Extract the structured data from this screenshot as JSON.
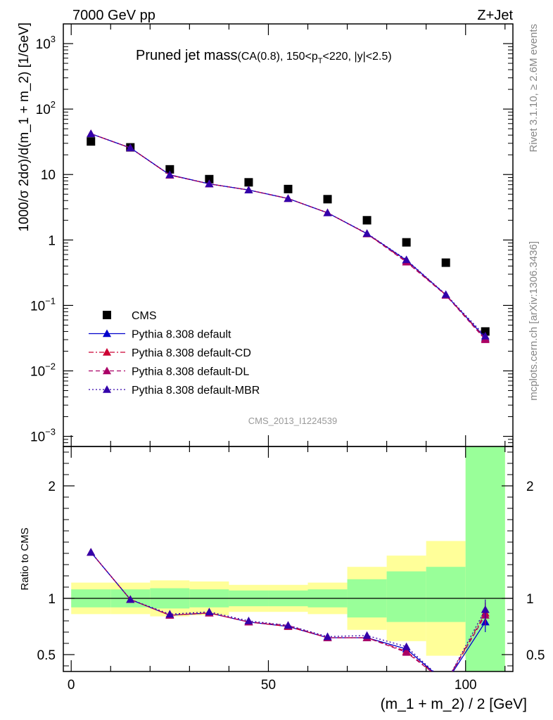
{
  "header": {
    "left": "7000 GeV pp",
    "right": "Z+Jet"
  },
  "side_labels": {
    "rivet": "Rivet 3.1.10, ≥ 2.6M events",
    "mcplots": "mcplots.cern.ch [arXiv:1306.3436]"
  },
  "analysis_id": "CMS_2013_I1224539",
  "colors": {
    "data": "#000000",
    "default": "#0000cc",
    "cd": "#cc0033",
    "dl": "#aa0066",
    "mbr": "#3300aa",
    "band_inner": "#99ff99",
    "band_outer": "#ffff99"
  },
  "chart_data": [
    {
      "type": "scatter",
      "panel": "main",
      "title": "Pruned jet mass",
      "title_suffix_pre": "(CA(0.8), 150<p",
      "title_suffix_sub": "T",
      "title_suffix_post": "<220, |y|<2.5)",
      "ylabel": "1000/σ 2dσ)/d(m_1 + m_2) [1/GeV]",
      "y_scale": "log",
      "ylim": [
        0.0007,
        2000
      ],
      "xlim": [
        -2,
        112
      ],
      "y_ticks": [
        {
          "v": 0.001,
          "base": "10",
          "exp": "−3"
        },
        {
          "v": 0.01,
          "base": "10",
          "exp": "−2"
        },
        {
          "v": 0.1,
          "base": "10",
          "exp": "−1"
        },
        {
          "v": 1,
          "base": "1",
          "exp": ""
        },
        {
          "v": 10,
          "base": "10",
          "exp": ""
        },
        {
          "v": 100,
          "base": "10",
          "exp": "2"
        },
        {
          "v": 1000,
          "base": "10",
          "exp": "3"
        }
      ],
      "x": [
        5,
        15,
        25,
        35,
        45,
        55,
        65,
        75,
        85,
        95,
        105
      ],
      "series": [
        {
          "name": "CMS",
          "key": "data",
          "style": "marker",
          "values": [
            32,
            26,
            12,
            8.5,
            7.6,
            6.0,
            4.2,
            2.0,
            0.92,
            0.45,
            0.04
          ]
        },
        {
          "name": "Pythia 8.308 default",
          "key": "default",
          "style": "solid",
          "values": [
            42,
            25.5,
            9.9,
            7.2,
            5.8,
            4.3,
            2.6,
            1.25,
            0.49,
            0.145,
            0.032
          ]
        },
        {
          "name": "Pythia 8.308 default-CD",
          "key": "cd",
          "style": "dashdot",
          "values": [
            42,
            25.5,
            9.8,
            7.2,
            5.8,
            4.3,
            2.6,
            1.25,
            0.47,
            0.145,
            0.031
          ]
        },
        {
          "name": "Pythia 8.308 default-DL",
          "key": "dl",
          "style": "dash",
          "values": [
            42,
            25.5,
            9.8,
            7.2,
            5.8,
            4.3,
            2.6,
            1.24,
            0.46,
            0.143,
            0.03
          ]
        },
        {
          "name": "Pythia 8.308 default-MBR",
          "key": "mbr",
          "style": "dot",
          "values": [
            42,
            25.5,
            9.9,
            7.2,
            5.8,
            4.3,
            2.6,
            1.26,
            0.5,
            0.147,
            0.034
          ]
        }
      ],
      "legend_placement": "bottom-left"
    },
    {
      "type": "line",
      "panel": "ratio",
      "ylabel": "Ratio to CMS",
      "xlabel": "(m_1 + m_2) / 2 [GeV]",
      "ylim": [
        0.35,
        2.35
      ],
      "xlim": [
        -2,
        112
      ],
      "x_ticks": [
        0,
        50,
        100
      ],
      "y_ticks": [
        0.5,
        1,
        2
      ],
      "reference_line": 1,
      "bins": [
        [
          0,
          10
        ],
        [
          10,
          20
        ],
        [
          20,
          30
        ],
        [
          30,
          40
        ],
        [
          40,
          50
        ],
        [
          50,
          60
        ],
        [
          60,
          70
        ],
        [
          70,
          80
        ],
        [
          80,
          90
        ],
        [
          90,
          100
        ],
        [
          100,
          110
        ]
      ],
      "band_inner": [
        [
          0.92,
          1.08
        ],
        [
          0.92,
          1.08
        ],
        [
          0.91,
          1.09
        ],
        [
          0.92,
          1.08
        ],
        [
          0.93,
          1.07
        ],
        [
          0.93,
          1.07
        ],
        [
          0.92,
          1.08
        ],
        [
          0.83,
          1.17
        ],
        [
          0.79,
          1.24
        ],
        [
          0.79,
          1.28
        ],
        [
          0.35,
          2.35
        ]
      ],
      "band_outer": [
        [
          0.86,
          1.14
        ],
        [
          0.86,
          1.14
        ],
        [
          0.84,
          1.16
        ],
        [
          0.85,
          1.15
        ],
        [
          0.88,
          1.12
        ],
        [
          0.88,
          1.12
        ],
        [
          0.86,
          1.14
        ],
        [
          0.72,
          1.28
        ],
        [
          0.62,
          1.38
        ],
        [
          0.49,
          1.51
        ],
        [
          0.35,
          2.35
        ]
      ],
      "x": [
        5,
        15,
        25,
        35,
        45,
        55,
        65,
        75,
        85,
        95,
        105
      ],
      "series": [
        {
          "name": "Pythia 8.308 default",
          "key": "default",
          "values": [
            1.41,
            0.99,
            0.85,
            0.87,
            0.79,
            0.75,
            0.65,
            0.65,
            0.55,
            0.25,
            0.79
          ],
          "errors": [
            0,
            0,
            0,
            0,
            0,
            0,
            0,
            0,
            0,
            0,
            0.09
          ]
        },
        {
          "name": "Pythia 8.308 default-CD",
          "key": "cd",
          "values": [
            1.41,
            0.99,
            0.85,
            0.87,
            0.79,
            0.75,
            0.65,
            0.65,
            0.53,
            0.25,
            0.87
          ],
          "errors": [
            0,
            0,
            0,
            0,
            0,
            0,
            0,
            0,
            0,
            0,
            0.09
          ]
        },
        {
          "name": "Pythia 8.308 default-DL",
          "key": "dl",
          "values": [
            1.41,
            0.99,
            0.85,
            0.87,
            0.79,
            0.76,
            0.65,
            0.65,
            0.52,
            0.25,
            0.85
          ],
          "errors": [
            0,
            0,
            0,
            0,
            0,
            0,
            0,
            0,
            0,
            0,
            0.09
          ]
        },
        {
          "name": "Pythia 8.308 default-MBR",
          "key": "mbr",
          "values": [
            1.41,
            0.99,
            0.86,
            0.88,
            0.8,
            0.76,
            0.66,
            0.67,
            0.57,
            0.25,
            0.9
          ],
          "errors": [
            0,
            0,
            0,
            0,
            0,
            0,
            0,
            0,
            0,
            0,
            0.09
          ]
        }
      ]
    }
  ]
}
